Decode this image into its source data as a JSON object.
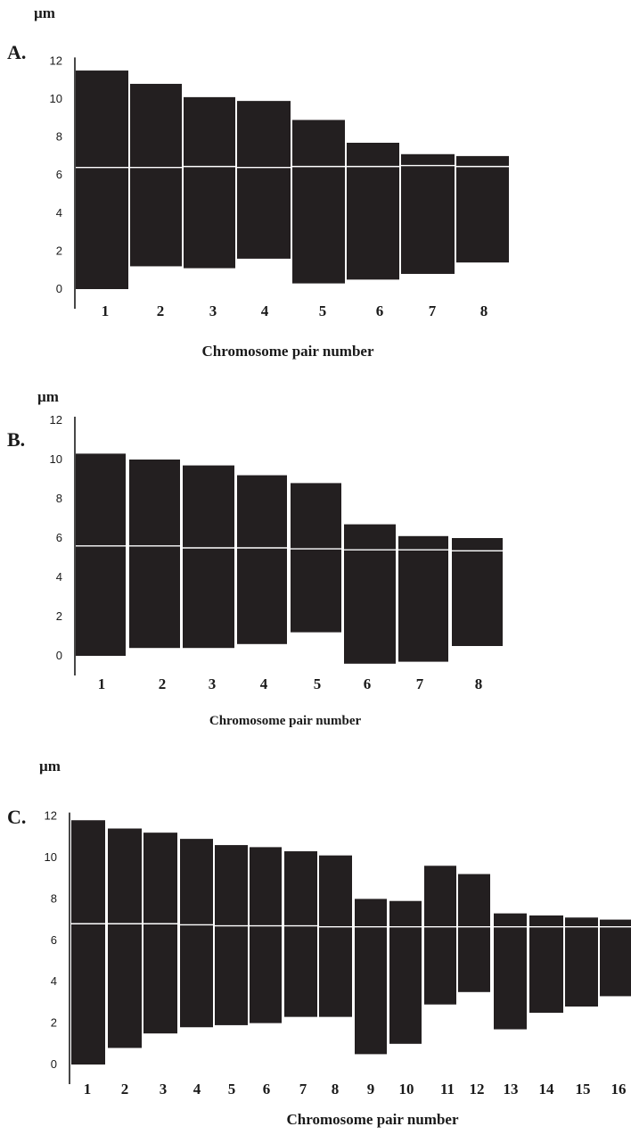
{
  "chart_data": [
    {
      "type": "bar",
      "panel": "A.",
      "unit": "µm",
      "xlabel": "Chromosome pair number",
      "ylim": [
        0,
        12
      ],
      "yticks": [
        "0",
        "2",
        "4",
        "6",
        "8",
        "10",
        "12"
      ],
      "categories": [
        "1",
        "2",
        "3",
        "4",
        "5",
        "6",
        "7",
        "8"
      ],
      "bar_color": "#231f20",
      "centromere_color": "#ffffff",
      "series": [
        {
          "name": "",
          "bottom": [
            0.0,
            1.2,
            1.1,
            1.6,
            0.3,
            0.5,
            0.8,
            1.4
          ],
          "top": [
            11.5,
            10.8,
            10.1,
            9.9,
            8.9,
            7.7,
            7.1,
            7.0
          ],
          "centromere": [
            6.4,
            6.4,
            6.45,
            6.4,
            6.45,
            6.45,
            6.5,
            6.45
          ]
        }
      ]
    },
    {
      "type": "bar",
      "panel": "B.",
      "unit": "µm",
      "xlabel": "Chromosome pair number",
      "ylim": [
        0,
        12
      ],
      "yticks": [
        "0",
        "2",
        "4",
        "6",
        "8",
        "10",
        "12"
      ],
      "categories": [
        "1",
        "2",
        "3",
        "4",
        "5",
        "6",
        "7",
        "8"
      ],
      "bar_color": "#231f20",
      "centromere_color": "#ffffff",
      "series": [
        {
          "name": "",
          "bottom": [
            0.0,
            0.4,
            0.4,
            0.6,
            1.2,
            -0.4,
            -0.3,
            0.5
          ],
          "top": [
            10.3,
            10.0,
            9.7,
            9.2,
            8.8,
            6.7,
            6.1,
            6.0
          ],
          "centromere": [
            5.6,
            5.6,
            5.5,
            5.5,
            5.45,
            5.4,
            5.4,
            5.35
          ]
        }
      ]
    },
    {
      "type": "bar",
      "panel": "C.",
      "unit": "µm",
      "xlabel": "Chromosome pair number",
      "ylim": [
        0,
        12
      ],
      "yticks": [
        "0",
        "2",
        "4",
        "6",
        "8",
        "10",
        "12"
      ],
      "categories": [
        "1",
        "2",
        "3",
        "4",
        "5",
        "6",
        "7",
        "8",
        "9",
        "10",
        "11",
        "12",
        "13",
        "14",
        "15",
        "16"
      ],
      "bar_color": "#231f20",
      "centromere_color": "#ffffff",
      "series": [
        {
          "name": "",
          "bottom": [
            0.0,
            0.8,
            1.5,
            1.8,
            1.9,
            2.0,
            2.3,
            2.3,
            0.5,
            1.0,
            2.9,
            3.5,
            1.7,
            2.5,
            2.8,
            3.3
          ],
          "top": [
            11.8,
            11.4,
            11.2,
            10.9,
            10.6,
            10.5,
            10.3,
            10.1,
            8.0,
            7.9,
            9.6,
            9.2,
            7.3,
            7.2,
            7.1,
            7.0
          ],
          "centromere": [
            6.8,
            6.8,
            6.8,
            6.75,
            6.7,
            6.7,
            6.7,
            6.65,
            6.65,
            6.65,
            6.65,
            6.65,
            6.65,
            6.65,
            6.65,
            6.65
          ]
        }
      ]
    }
  ]
}
